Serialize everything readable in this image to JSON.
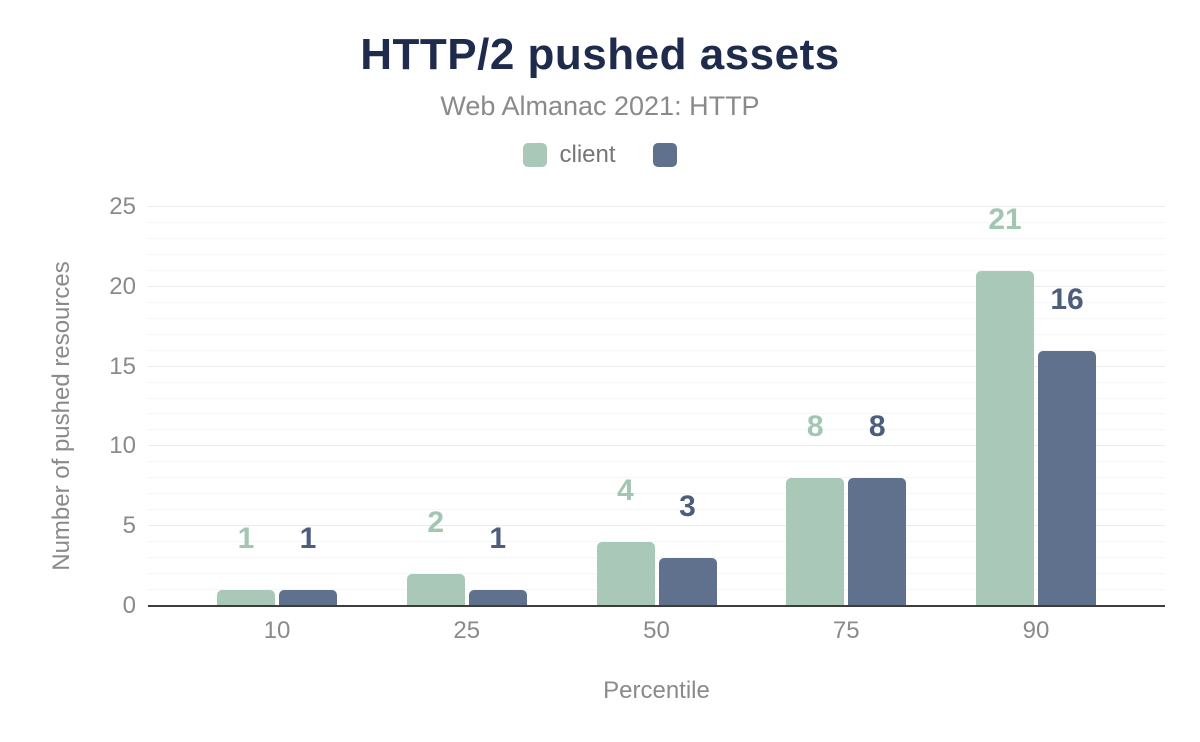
{
  "header": {
    "title": "HTTP/2 pushed assets",
    "subtitle": "Web Almanac 2021: HTTP"
  },
  "axes": {
    "x_title": "Percentile",
    "y_title": "Number of pushed resources"
  },
  "chart_data": {
    "type": "bar",
    "title": "HTTP/2 pushed assets",
    "subtitle": "Web Almanac 2021: HTTP",
    "xlabel": "Percentile",
    "ylabel": "Number of pushed resources",
    "categories": [
      "10",
      "25",
      "50",
      "75",
      "90"
    ],
    "series": [
      {
        "name": "client",
        "color": "#a9c8b8",
        "label_color": "#a3c6b3",
        "values": [
          1,
          2,
          4,
          8,
          21
        ]
      },
      {
        "name": "",
        "color": "#60718d",
        "label_color": "#4d5e7c",
        "values": [
          1,
          1,
          3,
          8,
          16
        ]
      }
    ],
    "ylim": [
      0,
      25
    ],
    "yticks": [
      0,
      5,
      10,
      15,
      20,
      25
    ],
    "grid": "horizontal, minor every 1 unit, major every 5 units",
    "legend_position": "top-center",
    "value_labels": "above bars, colored per series"
  },
  "colors": {
    "title": "#1e2b4d",
    "text_muted": "#8a8a8a",
    "legend_text": "#767676",
    "axis_line": "#3d3d3d",
    "grid_minor": "#f6f6f6",
    "grid_major": "#ebebeb",
    "background": "#ffffff"
  }
}
